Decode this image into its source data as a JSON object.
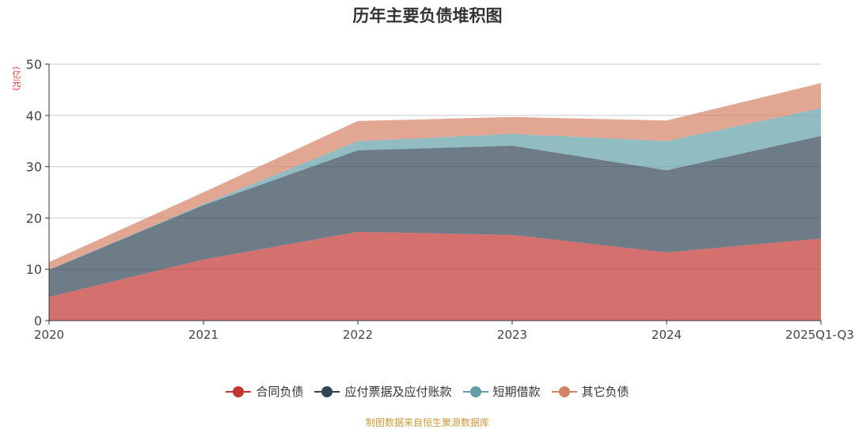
{
  "chart_data": {
    "type": "area",
    "stacked": true,
    "title": "历年主要负债堆积图",
    "ylabel": "(亿元)",
    "xlabel": "",
    "ylim": [
      0,
      50
    ],
    "yticks": [
      0,
      10,
      20,
      30,
      40,
      50
    ],
    "categories": [
      "2020",
      "2021",
      "2022",
      "2023",
      "2024",
      "2025Q1-Q3"
    ],
    "grid": true,
    "legend_position": "bottom",
    "series": [
      {
        "name": "合同负债",
        "color": "#c23531",
        "values": [
          4.6,
          11.9,
          17.3,
          16.7,
          13.3,
          16.0
        ]
      },
      {
        "name": "应付票据及应付账款",
        "color": "#2f4554",
        "values": [
          5.3,
          10.6,
          15.9,
          17.4,
          16.0,
          20.0
        ]
      },
      {
        "name": "短期借款",
        "color": "#61a0a8",
        "values": [
          0.0,
          0.2,
          1.8,
          2.3,
          5.7,
          5.4
        ]
      },
      {
        "name": "其它负债",
        "color": "#d48265",
        "values": [
          1.5,
          2.3,
          3.9,
          3.3,
          4.0,
          4.9
        ]
      }
    ]
  },
  "footer": "制图数据来自恒生聚源数据库"
}
